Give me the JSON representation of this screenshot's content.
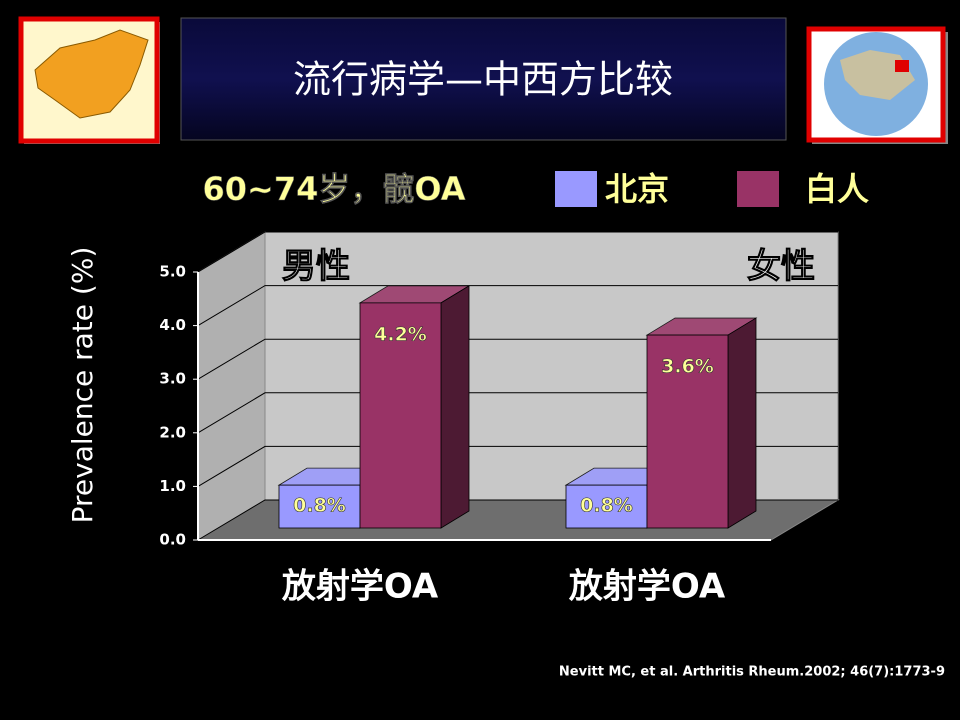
{
  "chart_data": {
    "type": "bar3d",
    "title": "流行病学—中西方比较",
    "subtitle": "60~74岁，髋OA",
    "y_label": "Prevalence rate (%)",
    "annotations": [
      "男性",
      "女性"
    ],
    "source": "Nevitt MC, et al. Arthritis Rheum.2002; 46(7):1773-9",
    "categories": [
      "放射学OA",
      "放射学OA"
    ],
    "series": [
      {
        "name": "北京",
        "color": "#9999ff",
        "values": [
          0.8,
          0.8
        ],
        "value_labels": [
          "0.8%",
          "0.8%"
        ]
      },
      {
        "name": "白人",
        "color": "#993366",
        "values": [
          4.2,
          3.6
        ],
        "value_labels": [
          "4.2%",
          "3.6%"
        ]
      }
    ],
    "ylim": [
      0,
      5
    ],
    "yticks": [
      {
        "value": 0,
        "label": "0.0"
      },
      {
        "value": 1,
        "label": "1.0"
      },
      {
        "value": 2,
        "label": "2.0"
      },
      {
        "value": 3,
        "label": "3.0"
      },
      {
        "value": 4,
        "label": "4.0"
      },
      {
        "value": 5,
        "label": "5.0"
      }
    ],
    "grid": true
  }
}
